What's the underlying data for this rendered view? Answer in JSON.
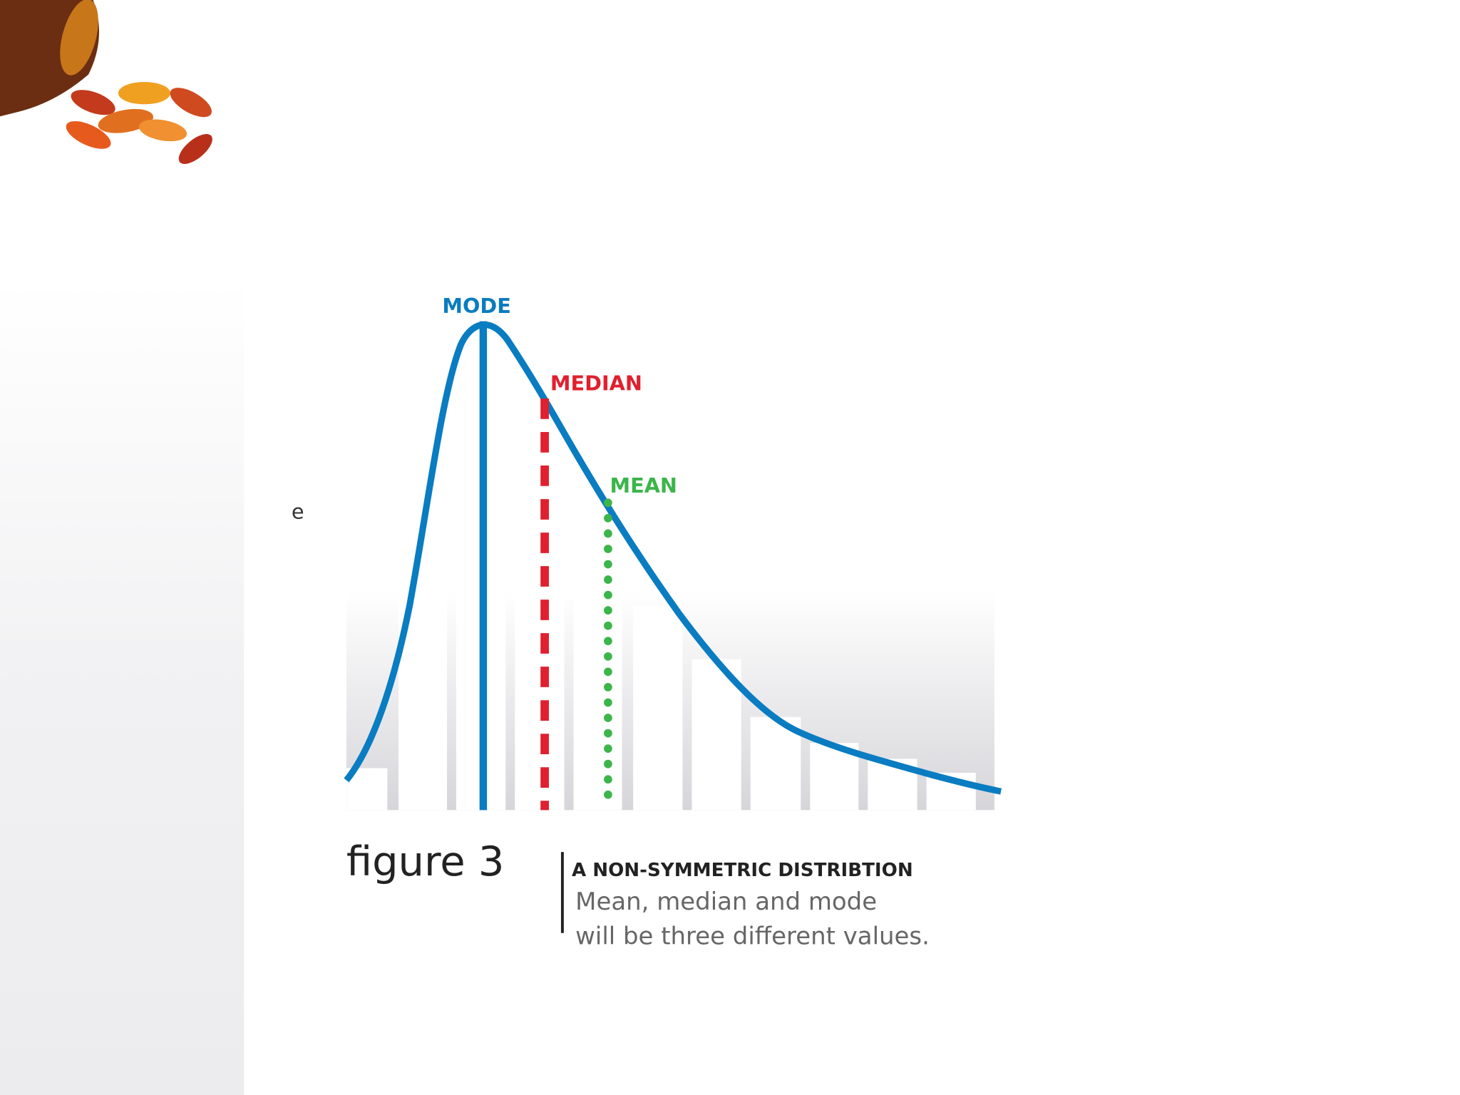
{
  "fragment": "e",
  "figure": {
    "labels": {
      "mode": "MODE",
      "median": "MEDIAN",
      "mean": "MEAN"
    },
    "caption": {
      "number": "figure 3",
      "title": "A NON-SYMMETRIC DISTRIBTION",
      "lines": [
        "Mean, median and mode",
        "will be three different values."
      ]
    }
  }
}
